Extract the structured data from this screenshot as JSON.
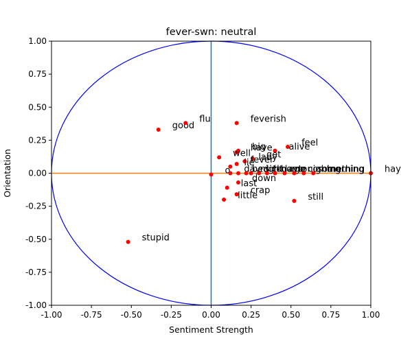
{
  "chart_data": {
    "type": "scatter",
    "title": "fever-swn: neutral",
    "xlabel": "Sentiment Strength",
    "ylabel": "Orientation",
    "xlim": [
      -1.0,
      1.0
    ],
    "ylim": [
      -1.0,
      1.0
    ],
    "xticks": [
      "-1.00",
      "-0.75",
      "-0.50",
      "-0.25",
      "0.00",
      "0.25",
      "0.50",
      "0.75",
      "1.00"
    ],
    "yticks": [
      "1.00",
      "0.75",
      "0.50",
      "0.25",
      "0.00",
      "-0.25",
      "-0.50",
      "-0.75",
      "-1.00"
    ],
    "grid": false,
    "colors": {
      "points": "#ff0000",
      "circle": "#0000ff",
      "horizontal_line": "#ff7f0e",
      "vertical_line": "#1f77b4"
    },
    "points": [
      {
        "x": -0.52,
        "y": -0.52,
        "label": "stupid"
      },
      {
        "x": -0.33,
        "y": 0.33,
        "label": "good"
      },
      {
        "x": -0.16,
        "y": 0.38,
        "label": "flu"
      },
      {
        "x": 0.16,
        "y": 0.38,
        "label": "feverish"
      },
      {
        "x": 0.48,
        "y": 0.2,
        "label": "feel"
      },
      {
        "x": 0.4,
        "y": 0.17,
        "label": "alive"
      },
      {
        "x": 0.17,
        "y": 0.17,
        "label": "big"
      },
      {
        "x": 0.16,
        "y": 0.16,
        "label": "have"
      },
      {
        "x": 0.05,
        "y": 0.12,
        "label": "well"
      },
      {
        "x": 0.26,
        "y": 0.11,
        "label": "get"
      },
      {
        "x": 0.21,
        "y": 0.09,
        "label": "lady"
      },
      {
        "x": 0.16,
        "y": 0.07,
        "label": "fever"
      },
      {
        "x": 0.12,
        "y": 0.05,
        "label": "lie"
      },
      {
        "x": 0.0,
        "y": -0.01,
        "label": "o"
      },
      {
        "x": 0.12,
        "y": 0.0,
        "label": "day"
      },
      {
        "x": 0.17,
        "y": 0.0,
        "label": "bed"
      },
      {
        "x": 0.22,
        "y": 0.0,
        "label": "night"
      },
      {
        "x": 0.25,
        "y": 0.0,
        "label": "sick"
      },
      {
        "x": 0.3,
        "y": 0.0,
        "label": "today"
      },
      {
        "x": 0.35,
        "y": 0.0,
        "label": "home"
      },
      {
        "x": 0.4,
        "y": 0.0,
        "label": "ago"
      },
      {
        "x": 0.46,
        "y": 0.0,
        "label": "tonight"
      },
      {
        "x": 0.52,
        "y": 0.0,
        "label": "coming"
      },
      {
        "x": 0.58,
        "y": 0.0,
        "label": "something"
      },
      {
        "x": 0.64,
        "y": 0.0,
        "label": "morning"
      },
      {
        "x": 1.0,
        "y": 0.0,
        "label": "hay"
      },
      {
        "x": 0.1,
        "y": -0.11,
        "label": "last"
      },
      {
        "x": 0.17,
        "y": -0.07,
        "label": "down"
      },
      {
        "x": 0.16,
        "y": -0.16,
        "label": "crap"
      },
      {
        "x": 0.08,
        "y": -0.2,
        "label": "little"
      },
      {
        "x": 0.52,
        "y": -0.21,
        "label": "still"
      }
    ]
  }
}
